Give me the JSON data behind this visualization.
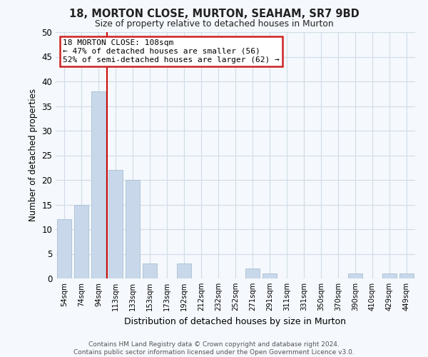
{
  "title": "18, MORTON CLOSE, MURTON, SEAHAM, SR7 9BD",
  "subtitle": "Size of property relative to detached houses in Murton",
  "xlabel": "Distribution of detached houses by size in Murton",
  "ylabel": "Number of detached properties",
  "bar_color": "#c8d8ea",
  "bar_edge_color": "#a8c0d4",
  "categories": [
    "54sqm",
    "74sqm",
    "94sqm",
    "113sqm",
    "133sqm",
    "153sqm",
    "173sqm",
    "192sqm",
    "212sqm",
    "232sqm",
    "252sqm",
    "271sqm",
    "291sqm",
    "311sqm",
    "331sqm",
    "350sqm",
    "370sqm",
    "390sqm",
    "410sqm",
    "429sqm",
    "449sqm"
  ],
  "values": [
    12,
    15,
    38,
    22,
    20,
    3,
    0,
    3,
    0,
    0,
    0,
    2,
    1,
    0,
    0,
    0,
    0,
    1,
    0,
    1,
    1
  ],
  "ylim": [
    0,
    50
  ],
  "yticks": [
    0,
    5,
    10,
    15,
    20,
    25,
    30,
    35,
    40,
    45,
    50
  ],
  "vline_x_idx": 2.5,
  "vline_color": "#cc0000",
  "annotation_title": "18 MORTON CLOSE: 108sqm",
  "annotation_line1": "← 47% of detached houses are smaller (56)",
  "annotation_line2": "52% of semi-detached houses are larger (62) →",
  "annotation_box_color": "#ffffff",
  "annotation_box_edge": "#cc2222",
  "footer_line1": "Contains HM Land Registry data © Crown copyright and database right 2024.",
  "footer_line2": "Contains public sector information licensed under the Open Government Licence v3.0.",
  "grid_color": "#d0dce8",
  "background_color": "#f5f8fc"
}
